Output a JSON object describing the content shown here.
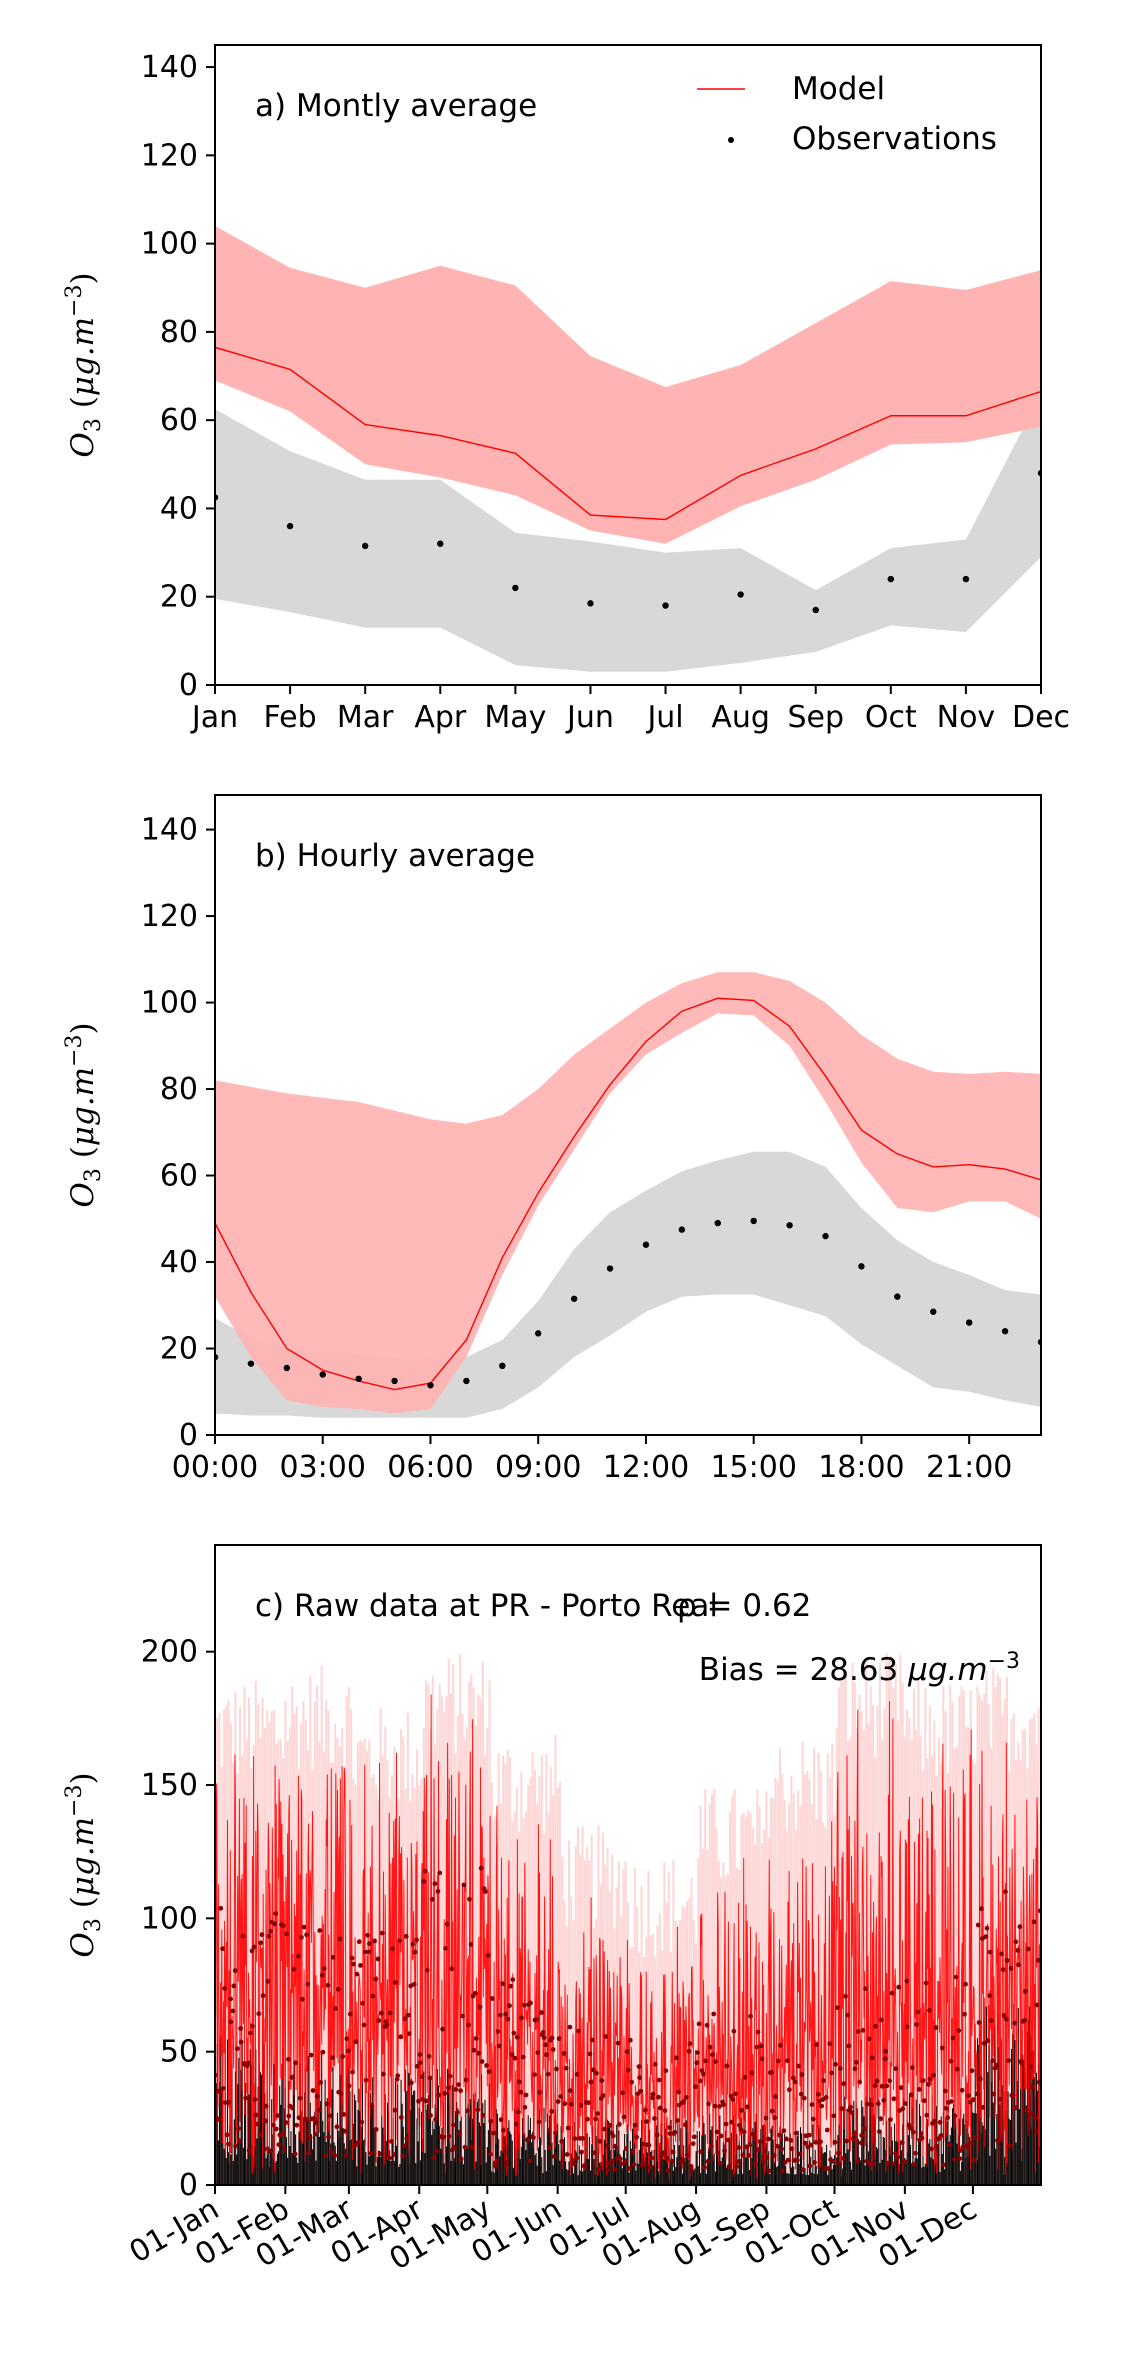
{
  "colors": {
    "model": "#ff0000",
    "model_band": "#ffb3b3",
    "obs": "#000000",
    "obs_band": "#d8d8d8",
    "raw_model_band": "#ffd6d6",
    "raw_obs_band": "#ececec"
  },
  "chart_data": [
    {
      "type": "line",
      "title": "a) Montly average",
      "ylabel": "O3 (µg.m⁻³)",
      "ylabel_parts": {
        "symbol": "O",
        "sub": "3",
        "unit_open": " (",
        "unit": "μg.m",
        "sup": "−3",
        "unit_close": ")"
      },
      "ylim": [
        0,
        145
      ],
      "yticks": [
        0,
        20,
        40,
        60,
        80,
        100,
        120,
        140
      ],
      "categories": [
        "Jan",
        "Feb",
        "Mar",
        "Apr",
        "May",
        "Jun",
        "Jul",
        "Aug",
        "Sep",
        "Oct",
        "Nov",
        "Dec"
      ],
      "legend": {
        "placement": "top-right",
        "entries": [
          "Model",
          "Observations"
        ]
      },
      "series": [
        {
          "name": "Model",
          "kind": "line",
          "values": [
            76.5,
            71.5,
            59,
            56.5,
            52.5,
            38.5,
            37.5,
            47.5,
            53.5,
            61,
            61,
            66.5
          ],
          "band_lower": [
            69,
            62,
            50,
            47,
            43,
            35,
            32,
            40.5,
            46.5,
            54.5,
            55,
            58.5
          ],
          "band_upper": [
            104,
            94.5,
            90,
            95,
            90.5,
            74.5,
            67.5,
            72.5,
            82,
            91.5,
            89.5,
            94
          ]
        },
        {
          "name": "Observations",
          "kind": "points",
          "values": [
            42.5,
            36,
            31.5,
            32,
            22,
            18.5,
            18,
            20.5,
            17,
            24,
            24,
            48
          ],
          "band_lower": [
            19.5,
            16.5,
            13,
            13,
            4.5,
            3,
            3,
            5,
            7.5,
            13.5,
            12,
            29
          ],
          "band_upper": [
            62.5,
            53,
            46.5,
            46.5,
            34.5,
            32.5,
            30,
            31,
            21.5,
            31,
            33,
            66
          ]
        }
      ]
    },
    {
      "type": "line",
      "title": "b) Hourly average",
      "ylabel": "O3 (µg.m⁻³)",
      "ylim": [
        0,
        148
      ],
      "yticks": [
        0,
        20,
        40,
        60,
        80,
        100,
        120,
        140
      ],
      "x": [
        0,
        1,
        2,
        3,
        4,
        5,
        6,
        7,
        8,
        9,
        10,
        11,
        12,
        13,
        14,
        15,
        16,
        17,
        18,
        19,
        20,
        21,
        22,
        23
      ],
      "xlim": [
        0,
        23
      ],
      "xticks": [
        0,
        3,
        6,
        9,
        12,
        15,
        18,
        21
      ],
      "xtick_labels": [
        "00:00",
        "03:00",
        "06:00",
        "09:00",
        "12:00",
        "15:00",
        "18:00",
        "21:00"
      ],
      "series": [
        {
          "name": "",
          "kind": "line",
          "values": [
            49,
            33,
            20,
            15,
            12.5,
            10.5,
            12,
            22,
            41,
            56,
            69,
            81,
            91,
            98,
            101,
            100.5,
            94.5,
            83,
            70.5,
            65,
            62,
            62.5,
            61.5,
            59
          ],
          "band_lower": [
            32,
            18,
            8,
            6.5,
            6,
            5,
            6,
            18,
            37,
            53,
            66,
            79,
            88,
            93,
            97.5,
            97,
            90,
            77,
            63,
            52.5,
            51.5,
            54,
            54,
            50
          ],
          "band_upper": [
            82,
            80.5,
            79,
            78,
            77,
            75,
            73,
            72,
            74,
            80,
            88,
            94,
            100,
            104.5,
            107,
            107,
            105,
            100,
            92.5,
            87,
            84,
            83.5,
            84,
            83.5
          ]
        },
        {
          "name": "",
          "kind": "points",
          "values": [
            18,
            16.5,
            15.5,
            14,
            13,
            12.5,
            11.5,
            12.5,
            16,
            23.5,
            31.5,
            38.5,
            44,
            47.5,
            49,
            49.5,
            48.5,
            46,
            39,
            32,
            28.5,
            26,
            24,
            21.5
          ],
          "band_lower": [
            5,
            4.5,
            4.5,
            4,
            4,
            4,
            4,
            4,
            6,
            11,
            18,
            23,
            28.5,
            32,
            32.5,
            32.5,
            30,
            27.5,
            21,
            16,
            11,
            10,
            8,
            6.5
          ],
          "band_upper": [
            27,
            22.5,
            20,
            19,
            18.5,
            18,
            17.5,
            18,
            22,
            31,
            43,
            51.5,
            56.5,
            61,
            63.5,
            65.5,
            65.5,
            62,
            52.5,
            45,
            40,
            37,
            33.5,
            32.5
          ]
        }
      ]
    },
    {
      "type": "line",
      "title": "c) Raw data at PR - Porto Real",
      "stats": {
        "r_label": "ρ = 0.62",
        "bias_prefix": "Bias = 28.63 ",
        "bias_unit": "μg.m",
        "bias_sup": "−3"
      },
      "ylabel": "O3 (µg.m⁻³)",
      "ylim": [
        0,
        240
      ],
      "yticks": [
        0,
        50,
        100,
        150,
        200
      ],
      "xlim_day": [
        1,
        365
      ],
      "xtick_days": [
        1,
        32,
        60,
        91,
        121,
        152,
        182,
        213,
        244,
        274,
        305,
        335
      ],
      "xtick_labels": [
        "01-Jan",
        "01-Feb",
        "01-Mar",
        "01-Apr",
        "01-May",
        "01-Jun",
        "01-Jul",
        "01-Aug",
        "01-Sep",
        "01-Oct",
        "01-Nov",
        "01-Dec"
      ],
      "series": [
        {
          "name": "",
          "kind": "hourly-line",
          "monthly_base": [
            76,
            71,
            59,
            56,
            52,
            38,
            37,
            47,
            53,
            61,
            61,
            66
          ],
          "monthly_peak": [
            150,
            155,
            140,
            160,
            130,
            95,
            85,
            110,
            130,
            160,
            150,
            155
          ]
        },
        {
          "name": "",
          "kind": "hourly-points",
          "monthly_base": [
            42,
            36,
            31,
            32,
            22,
            18,
            18,
            20,
            17,
            24,
            24,
            48
          ],
          "monthly_peak": [
            105,
            100,
            95,
            120,
            80,
            60,
            55,
            65,
            55,
            75,
            80,
            110
          ]
        }
      ]
    }
  ]
}
